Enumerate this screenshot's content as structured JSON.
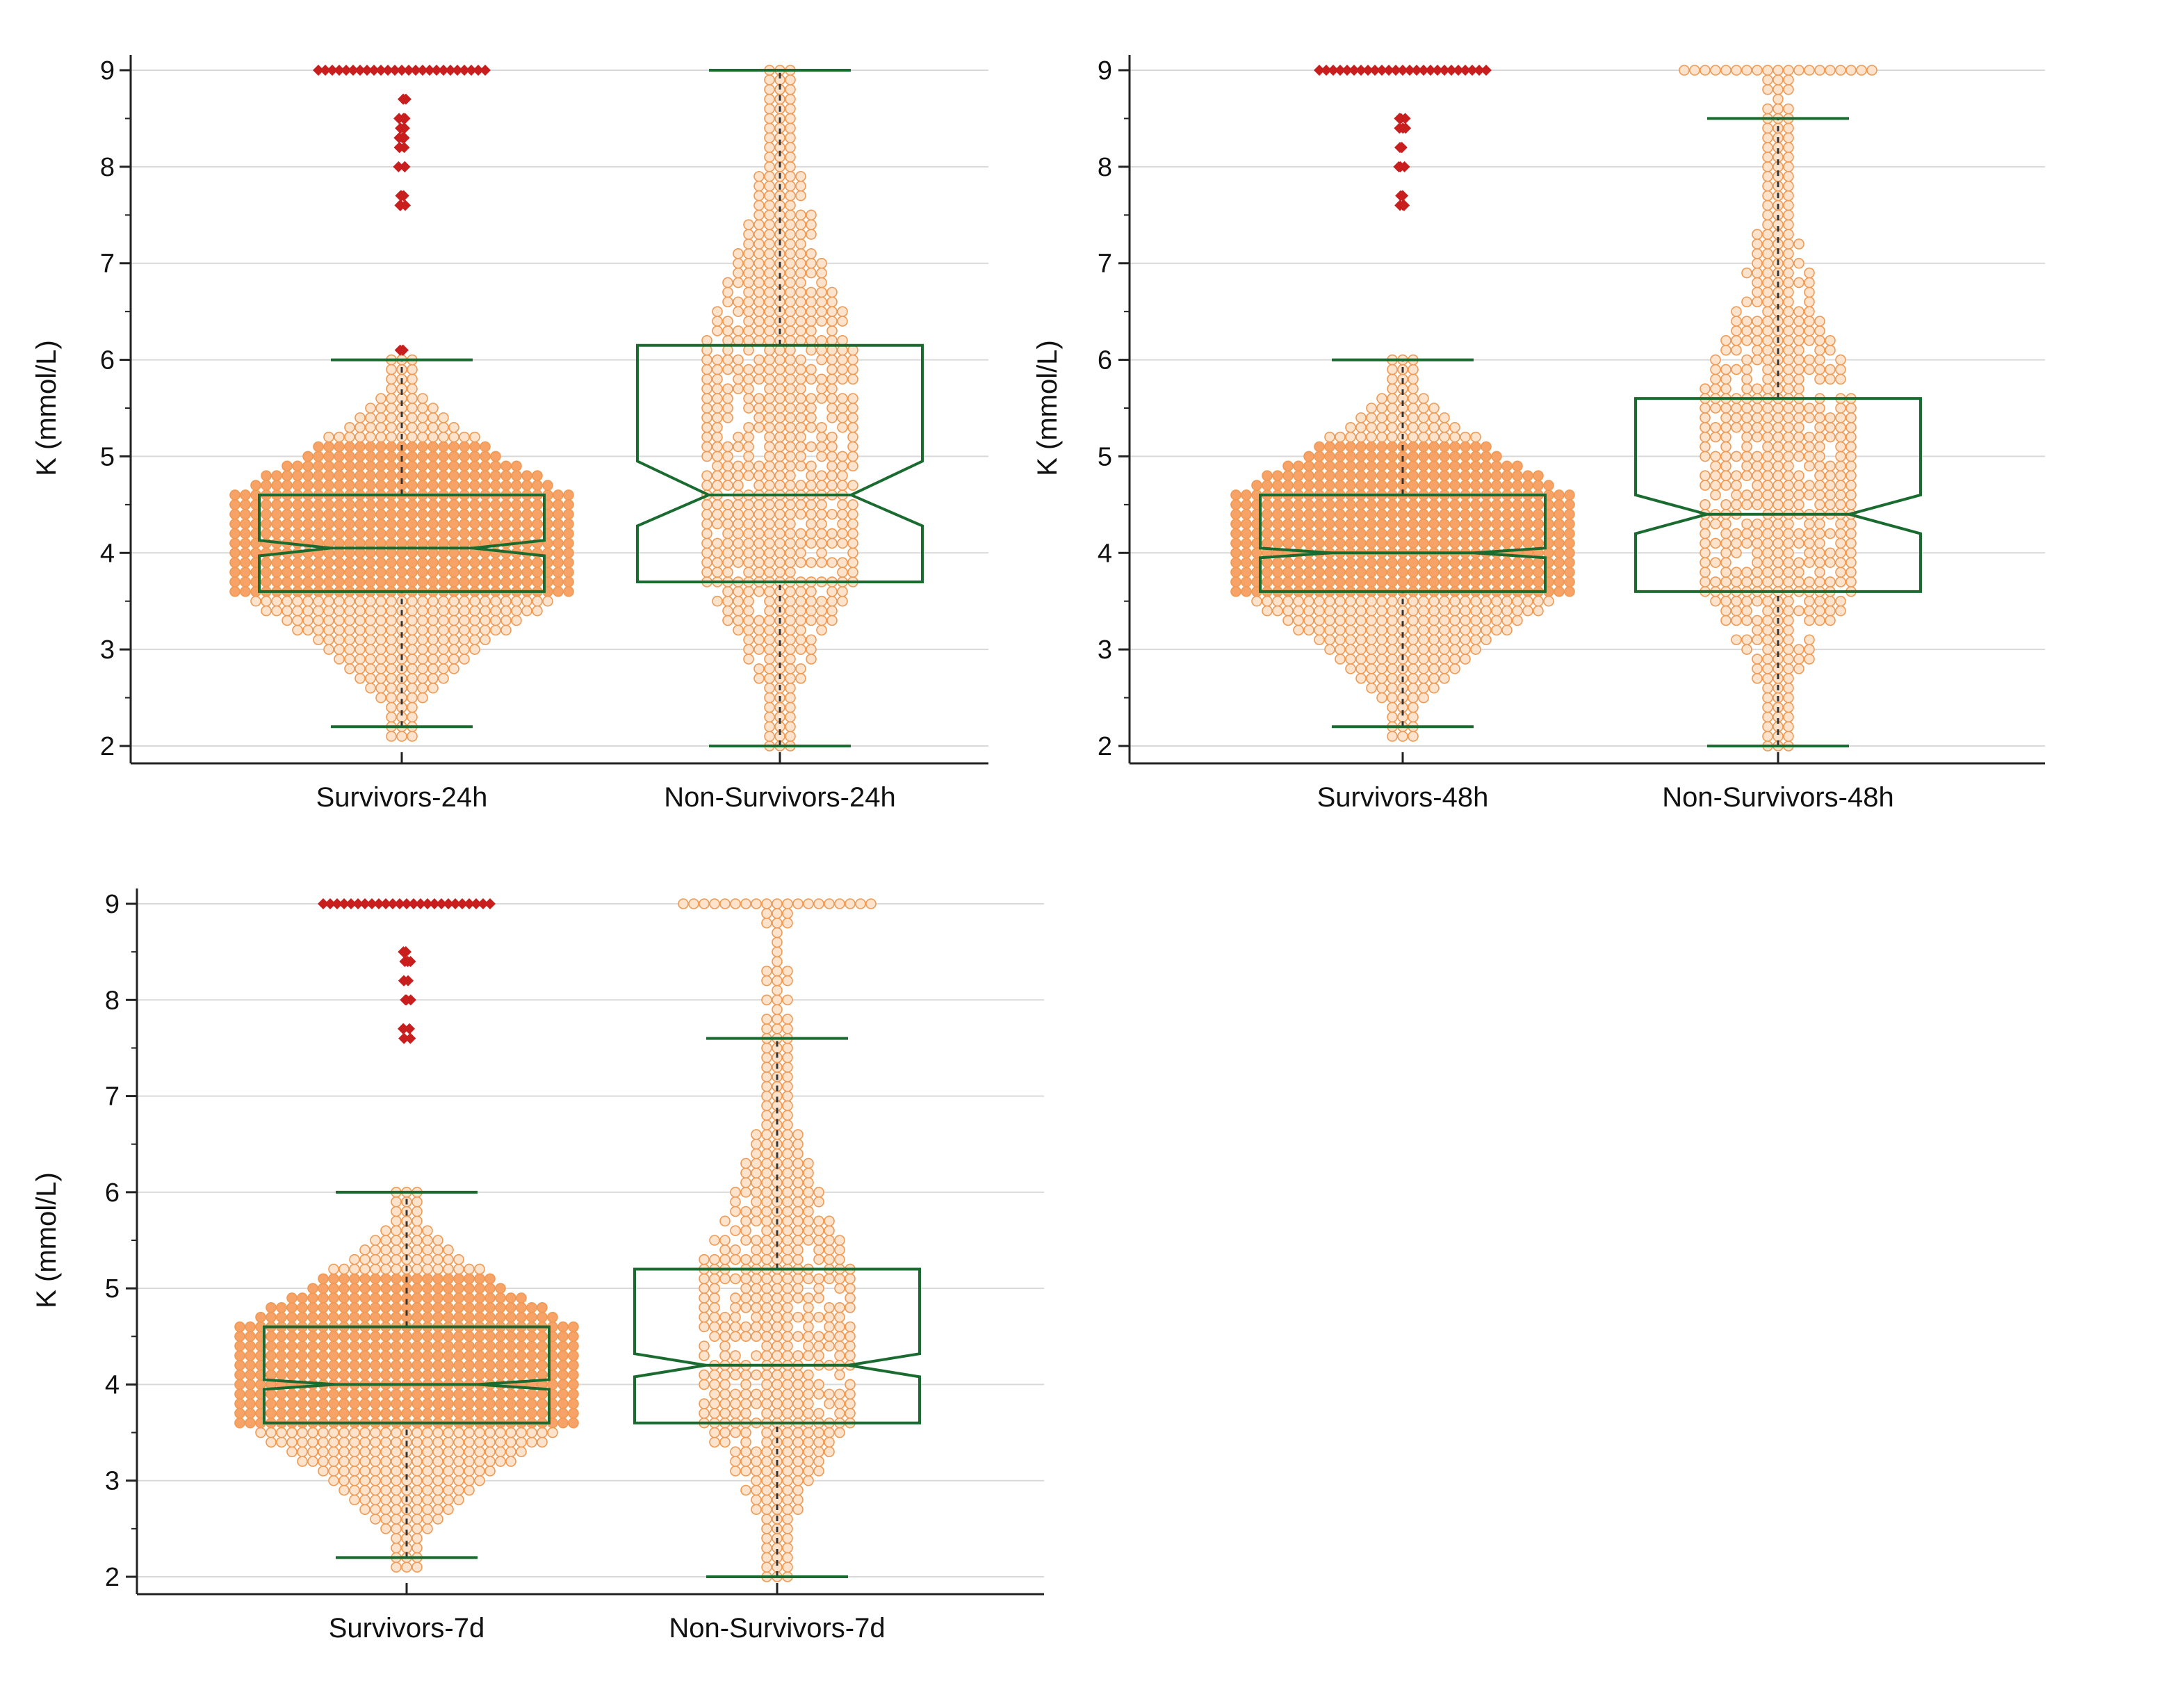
{
  "colors": {
    "point_fill": "#fde3cc",
    "point_stroke": "#ef9a55",
    "dense_fill": "#f7a266",
    "outlier": "#c81e1e",
    "box": "#1a6b30",
    "grid": "#d9d9d9",
    "axis": "#222222",
    "median_line": "#333333"
  },
  "chart_data": [
    {
      "type": "box",
      "subtype": "notched box plot with dot overlay",
      "title": "",
      "ylabel": "K (mmol/L)",
      "xlabel": "",
      "ylim": [
        2,
        9
      ],
      "yticks": [
        "2",
        "3",
        "4",
        "5",
        "6",
        "7",
        "8",
        "9"
      ],
      "grid": true,
      "categories": [
        "Survivors-24h",
        "Non-Survivors-24h"
      ],
      "series": [
        {
          "q1": 3.6,
          "median": 4.05,
          "q3": 4.6,
          "notch_low": 3.97,
          "notch_high": 4.13,
          "whisker_low": 2.2,
          "whisker_high": 6.0,
          "data_min": 2.1,
          "data_max": 9.0,
          "outliers": [
            6.1,
            9.0,
            8.7,
            8.5,
            8.4,
            8.3,
            8.2,
            8.0,
            7.7,
            7.6
          ]
        },
        {
          "q1": 3.7,
          "median": 4.6,
          "q3": 6.15,
          "notch_low": 4.28,
          "notch_high": 4.95,
          "whisker_low": 2.0,
          "whisker_high": 9.0,
          "data_min": 2.0,
          "data_max": 9.0,
          "outliers": []
        }
      ]
    },
    {
      "type": "box",
      "subtype": "notched box plot with dot overlay",
      "title": "",
      "ylabel": "K (mmol/L)",
      "xlabel": "",
      "ylim": [
        2,
        9
      ],
      "yticks": [
        "2",
        "3",
        "4",
        "5",
        "6",
        "7",
        "8",
        "9"
      ],
      "grid": true,
      "categories": [
        "Survivors-48h",
        "Non-Survivors-48h"
      ],
      "series": [
        {
          "q1": 3.6,
          "median": 4.0,
          "q3": 4.6,
          "notch_low": 3.95,
          "notch_high": 4.05,
          "whisker_low": 2.2,
          "whisker_high": 6.0,
          "data_min": 2.1,
          "data_max": 9.0,
          "outliers": [
            9.0,
            8.5,
            8.4,
            8.2,
            8.0,
            7.7,
            7.6
          ]
        },
        {
          "q1": 3.6,
          "median": 4.4,
          "q3": 5.6,
          "notch_low": 4.2,
          "notch_high": 4.6,
          "whisker_low": 2.0,
          "whisker_high": 8.5,
          "data_min": 2.0,
          "data_max": 9.0,
          "outliers": []
        }
      ]
    },
    {
      "type": "box",
      "subtype": "notched box plot with dot overlay",
      "title": "",
      "ylabel": "K (mmol/L)",
      "xlabel": "",
      "ylim": [
        2,
        9
      ],
      "yticks": [
        "2",
        "3",
        "4",
        "5",
        "6",
        "7",
        "8",
        "9"
      ],
      "grid": true,
      "categories": [
        "Survivors-7d",
        "Non-Survivors-7d"
      ],
      "series": [
        {
          "q1": 3.6,
          "median": 4.0,
          "q3": 4.6,
          "notch_low": 3.95,
          "notch_high": 4.05,
          "whisker_low": 2.2,
          "whisker_high": 6.0,
          "data_min": 2.1,
          "data_max": 9.0,
          "outliers": [
            9.0,
            8.5,
            8.4,
            8.2,
            8.0,
            7.7,
            7.6
          ]
        },
        {
          "q1": 3.6,
          "median": 4.2,
          "q3": 5.2,
          "notch_low": 4.08,
          "notch_high": 4.32,
          "whisker_low": 2.0,
          "whisker_high": 7.6,
          "data_min": 2.0,
          "data_max": 9.0,
          "outliers": []
        }
      ]
    }
  ]
}
